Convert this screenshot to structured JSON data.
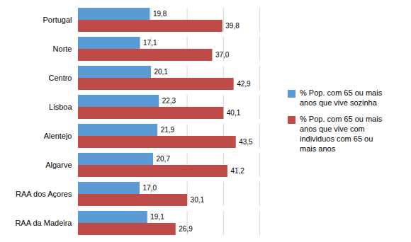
{
  "chart_data": {
    "type": "bar",
    "orientation": "horizontal",
    "categories": [
      "Portugal",
      "Norte",
      "Centro",
      "Lisboa",
      "Alentejo",
      "Algarve",
      "RAA dos Açores",
      "RAA da Madeira"
    ],
    "series": [
      {
        "name": "% Pop. com 65 ou mais\nanos que vive sozinha",
        "color": "#5B9BD5",
        "values": [
          19.8,
          17.1,
          20.1,
          22.3,
          21.9,
          20.7,
          17.0,
          19.1
        ],
        "value_labels": [
          "19,8",
          "17,1",
          "20,1",
          "22,3",
          "21,9",
          "20,7",
          "17,0",
          "19,1"
        ]
      },
      {
        "name": "% Pop. com 65 ou mais\nanos que vive com\nindividuos com 65 ou\nmais anos",
        "color": "#BE4B48",
        "values": [
          39.8,
          37.0,
          42.9,
          40.1,
          43.5,
          41.2,
          30.1,
          26.9
        ],
        "value_labels": [
          "39,8",
          "37,0",
          "42,9",
          "40,1",
          "43,5",
          "41,2",
          "30,1",
          "26,9"
        ]
      }
    ],
    "xlim": [
      0,
      50
    ],
    "xticks": [
      0,
      10,
      20,
      30,
      40,
      50
    ],
    "grid": true,
    "data_labels": true,
    "tick_labels": "y",
    "legend": "right"
  }
}
